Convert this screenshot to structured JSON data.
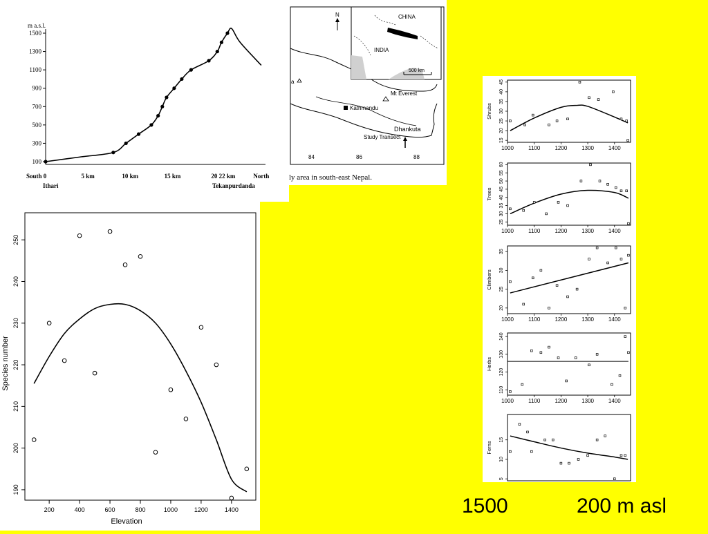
{
  "colors": {
    "background": "#ffff00",
    "panel": "#ffffff",
    "ink": "#000000",
    "land": "#d0d0d0"
  },
  "footer": {
    "left": "1500",
    "right": "200 m asl"
  },
  "map": {
    "country_china": "CHINA",
    "country_india": "INDIA",
    "scale_label": "500 km",
    "north_label": "N",
    "city_kathmandu": "Kathmandu",
    "peak_everest": "Mt Everest",
    "town_dhankuta": "Dhankuta",
    "transect_label": "Study Transect",
    "partial_label": "a",
    "long_ticks": [
      "84",
      "86",
      "88"
    ],
    "caption": "ly area in south-east Nepal."
  },
  "chart_data": [
    {
      "id": "profile",
      "type": "line",
      "title": "",
      "ylabel": "m a.s.l.",
      "y_ticks": [
        "100",
        "300",
        "500",
        "700",
        "900",
        "1100",
        "1300",
        "1500"
      ],
      "ylim": [
        100,
        1500
      ],
      "x_ticks": [
        "South 0",
        "5 km",
        "10 km",
        "15 km",
        "20 22 km",
        "North"
      ],
      "x_sublabels": {
        "left": "Ithari",
        "right": "Tekanpurdanda"
      },
      "xlim": [
        0,
        26
      ],
      "x": [
        0,
        4,
        8,
        9.5,
        11,
        12.5,
        13.3,
        13.8,
        14.3,
        15.2,
        16.1,
        17.2,
        19.3,
        20.3,
        20.8,
        21.5,
        22.0,
        23.0,
        25.5
      ],
      "y": [
        100,
        150,
        200,
        300,
        400,
        500,
        600,
        700,
        800,
        900,
        1000,
        1100,
        1200,
        1300,
        1400,
        1500,
        1550,
        1400,
        1150
      ],
      "points_x": [
        0,
        8,
        9.5,
        11,
        12.5,
        13.3,
        13.8,
        14.3,
        15.2,
        16.1,
        17.2,
        19.3,
        20.3,
        20.8,
        21.5
      ],
      "points_y": [
        100,
        200,
        300,
        400,
        500,
        600,
        700,
        800,
        900,
        1000,
        1100,
        1200,
        1300,
        1400,
        1500
      ]
    },
    {
      "id": "species",
      "type": "scatter",
      "xlabel": "Elevation",
      "ylabel": "Species number",
      "xlim": [
        40,
        1560
      ],
      "ylim": [
        187.5,
        256.5
      ],
      "x_ticks": [
        "200",
        "400",
        "600",
        "800",
        "1000",
        "1200",
        "1400"
      ],
      "y_ticks": [
        "190",
        "200",
        "210",
        "220",
        "230",
        "240",
        "250"
      ],
      "points_x": [
        100,
        200,
        300,
        400,
        500,
        600,
        700,
        800,
        900,
        1000,
        1100,
        1200,
        1300,
        1400,
        1500
      ],
      "points_y": [
        202,
        230,
        221,
        251,
        218,
        252,
        244,
        246,
        199,
        214,
        207,
        229,
        220,
        188,
        195
      ],
      "fit_x": [
        100,
        200,
        300,
        400,
        500,
        600,
        700,
        800,
        900,
        1000,
        1100,
        1200,
        1300,
        1400,
        1500
      ],
      "fit_y": [
        215.5,
        222,
        227.5,
        231,
        233.5,
        234.5,
        234.5,
        233,
        230,
        225,
        218.5,
        211,
        202,
        192.5,
        189.5
      ]
    },
    {
      "id": "shrubs",
      "type": "scatter",
      "ylabel": "Shrubs",
      "xlim": [
        1000,
        1460
      ],
      "ylim": [
        14,
        46
      ],
      "x_ticks": [
        "1000",
        "1100",
        "1200",
        "1300",
        "1400"
      ],
      "y_ticks": [
        "15",
        "20",
        "25",
        "30",
        "35",
        "40",
        "45"
      ],
      "points_x": [
        1010,
        1065,
        1095,
        1155,
        1185,
        1225,
        1270,
        1305,
        1340,
        1395,
        1425,
        1445,
        1450
      ],
      "points_y": [
        25,
        23,
        28,
        23,
        25,
        26,
        45,
        37,
        36,
        40,
        26,
        25,
        15
      ],
      "fit_x": [
        1010,
        1100,
        1200,
        1260,
        1300,
        1400,
        1450
      ],
      "fit_y": [
        20,
        26.5,
        32,
        33,
        32.5,
        27,
        24
      ]
    },
    {
      "id": "trees",
      "type": "scatter",
      "ylabel": "Trees",
      "xlim": [
        1000,
        1460
      ],
      "ylim": [
        23,
        61
      ],
      "x_ticks": [
        "1000",
        "1100",
        "1200",
        "1300",
        "1400"
      ],
      "y_ticks": [
        "25",
        "30",
        "35",
        "40",
        "45",
        "50",
        "55",
        "60"
      ],
      "points_x": [
        1010,
        1060,
        1100,
        1145,
        1190,
        1225,
        1275,
        1310,
        1345,
        1375,
        1405,
        1425,
        1445,
        1452
      ],
      "points_y": [
        33,
        32,
        37,
        30,
        37,
        35,
        50,
        60,
        50,
        48,
        46,
        44,
        44,
        24
      ],
      "fit_x": [
        1010,
        1100,
        1200,
        1300,
        1400,
        1452
      ],
      "fit_y": [
        30,
        36.5,
        42,
        44.3,
        43,
        39.5
      ]
    },
    {
      "id": "climbers",
      "type": "scatter",
      "ylabel": "Climbers",
      "xlim": [
        1000,
        1460
      ],
      "ylim": [
        18.5,
        36.5
      ],
      "x_ticks": [
        "1000",
        "1100",
        "1200",
        "1300",
        "1400"
      ],
      "y_ticks": [
        "20",
        "25",
        "30",
        "35"
      ],
      "points_x": [
        1010,
        1060,
        1095,
        1125,
        1155,
        1185,
        1225,
        1260,
        1305,
        1335,
        1375,
        1405,
        1425,
        1440,
        1452
      ],
      "points_y": [
        27,
        21,
        28,
        30,
        20,
        26,
        23,
        25,
        33,
        36,
        32,
        36,
        33,
        20,
        34
      ],
      "fit_x": [
        1010,
        1452
      ],
      "fit_y": [
        24,
        32
      ]
    },
    {
      "id": "herbs",
      "type": "scatter",
      "ylabel": "Herbs",
      "xlim": [
        1000,
        1460
      ],
      "ylim": [
        107,
        142
      ],
      "x_ticks": [
        "1000",
        "1100",
        "1200",
        "1300",
        "1400"
      ],
      "y_ticks": [
        "110",
        "120",
        "130",
        "140"
      ],
      "points_x": [
        1010,
        1055,
        1090,
        1125,
        1155,
        1190,
        1220,
        1255,
        1305,
        1335,
        1390,
        1420,
        1440,
        1452
      ],
      "points_y": [
        109,
        113,
        132,
        131,
        134,
        128,
        115,
        128,
        124,
        130,
        113,
        118,
        140,
        131
      ],
      "fit_x": [
        1000,
        1452
      ],
      "fit_y": [
        126,
        126
      ]
    },
    {
      "id": "ferns",
      "type": "scatter",
      "ylabel": "Ferns",
      "xlim": [
        1000,
        1460
      ],
      "ylim": [
        4.5,
        21.5
      ],
      "x_ticks": [],
      "y_ticks": [
        "5",
        "10",
        "15"
      ],
      "points_x": [
        1010,
        1045,
        1075,
        1090,
        1140,
        1170,
        1200,
        1230,
        1265,
        1300,
        1335,
        1365,
        1400,
        1425,
        1440
      ],
      "points_y": [
        12,
        19,
        17,
        12,
        15,
        15,
        9,
        9,
        10,
        11,
        15,
        16,
        5,
        11,
        11
      ],
      "fit_x": [
        1010,
        1100,
        1200,
        1300,
        1400,
        1450
      ],
      "fit_y": [
        16,
        14.5,
        12.9,
        11.6,
        10.6,
        10
      ]
    }
  ]
}
